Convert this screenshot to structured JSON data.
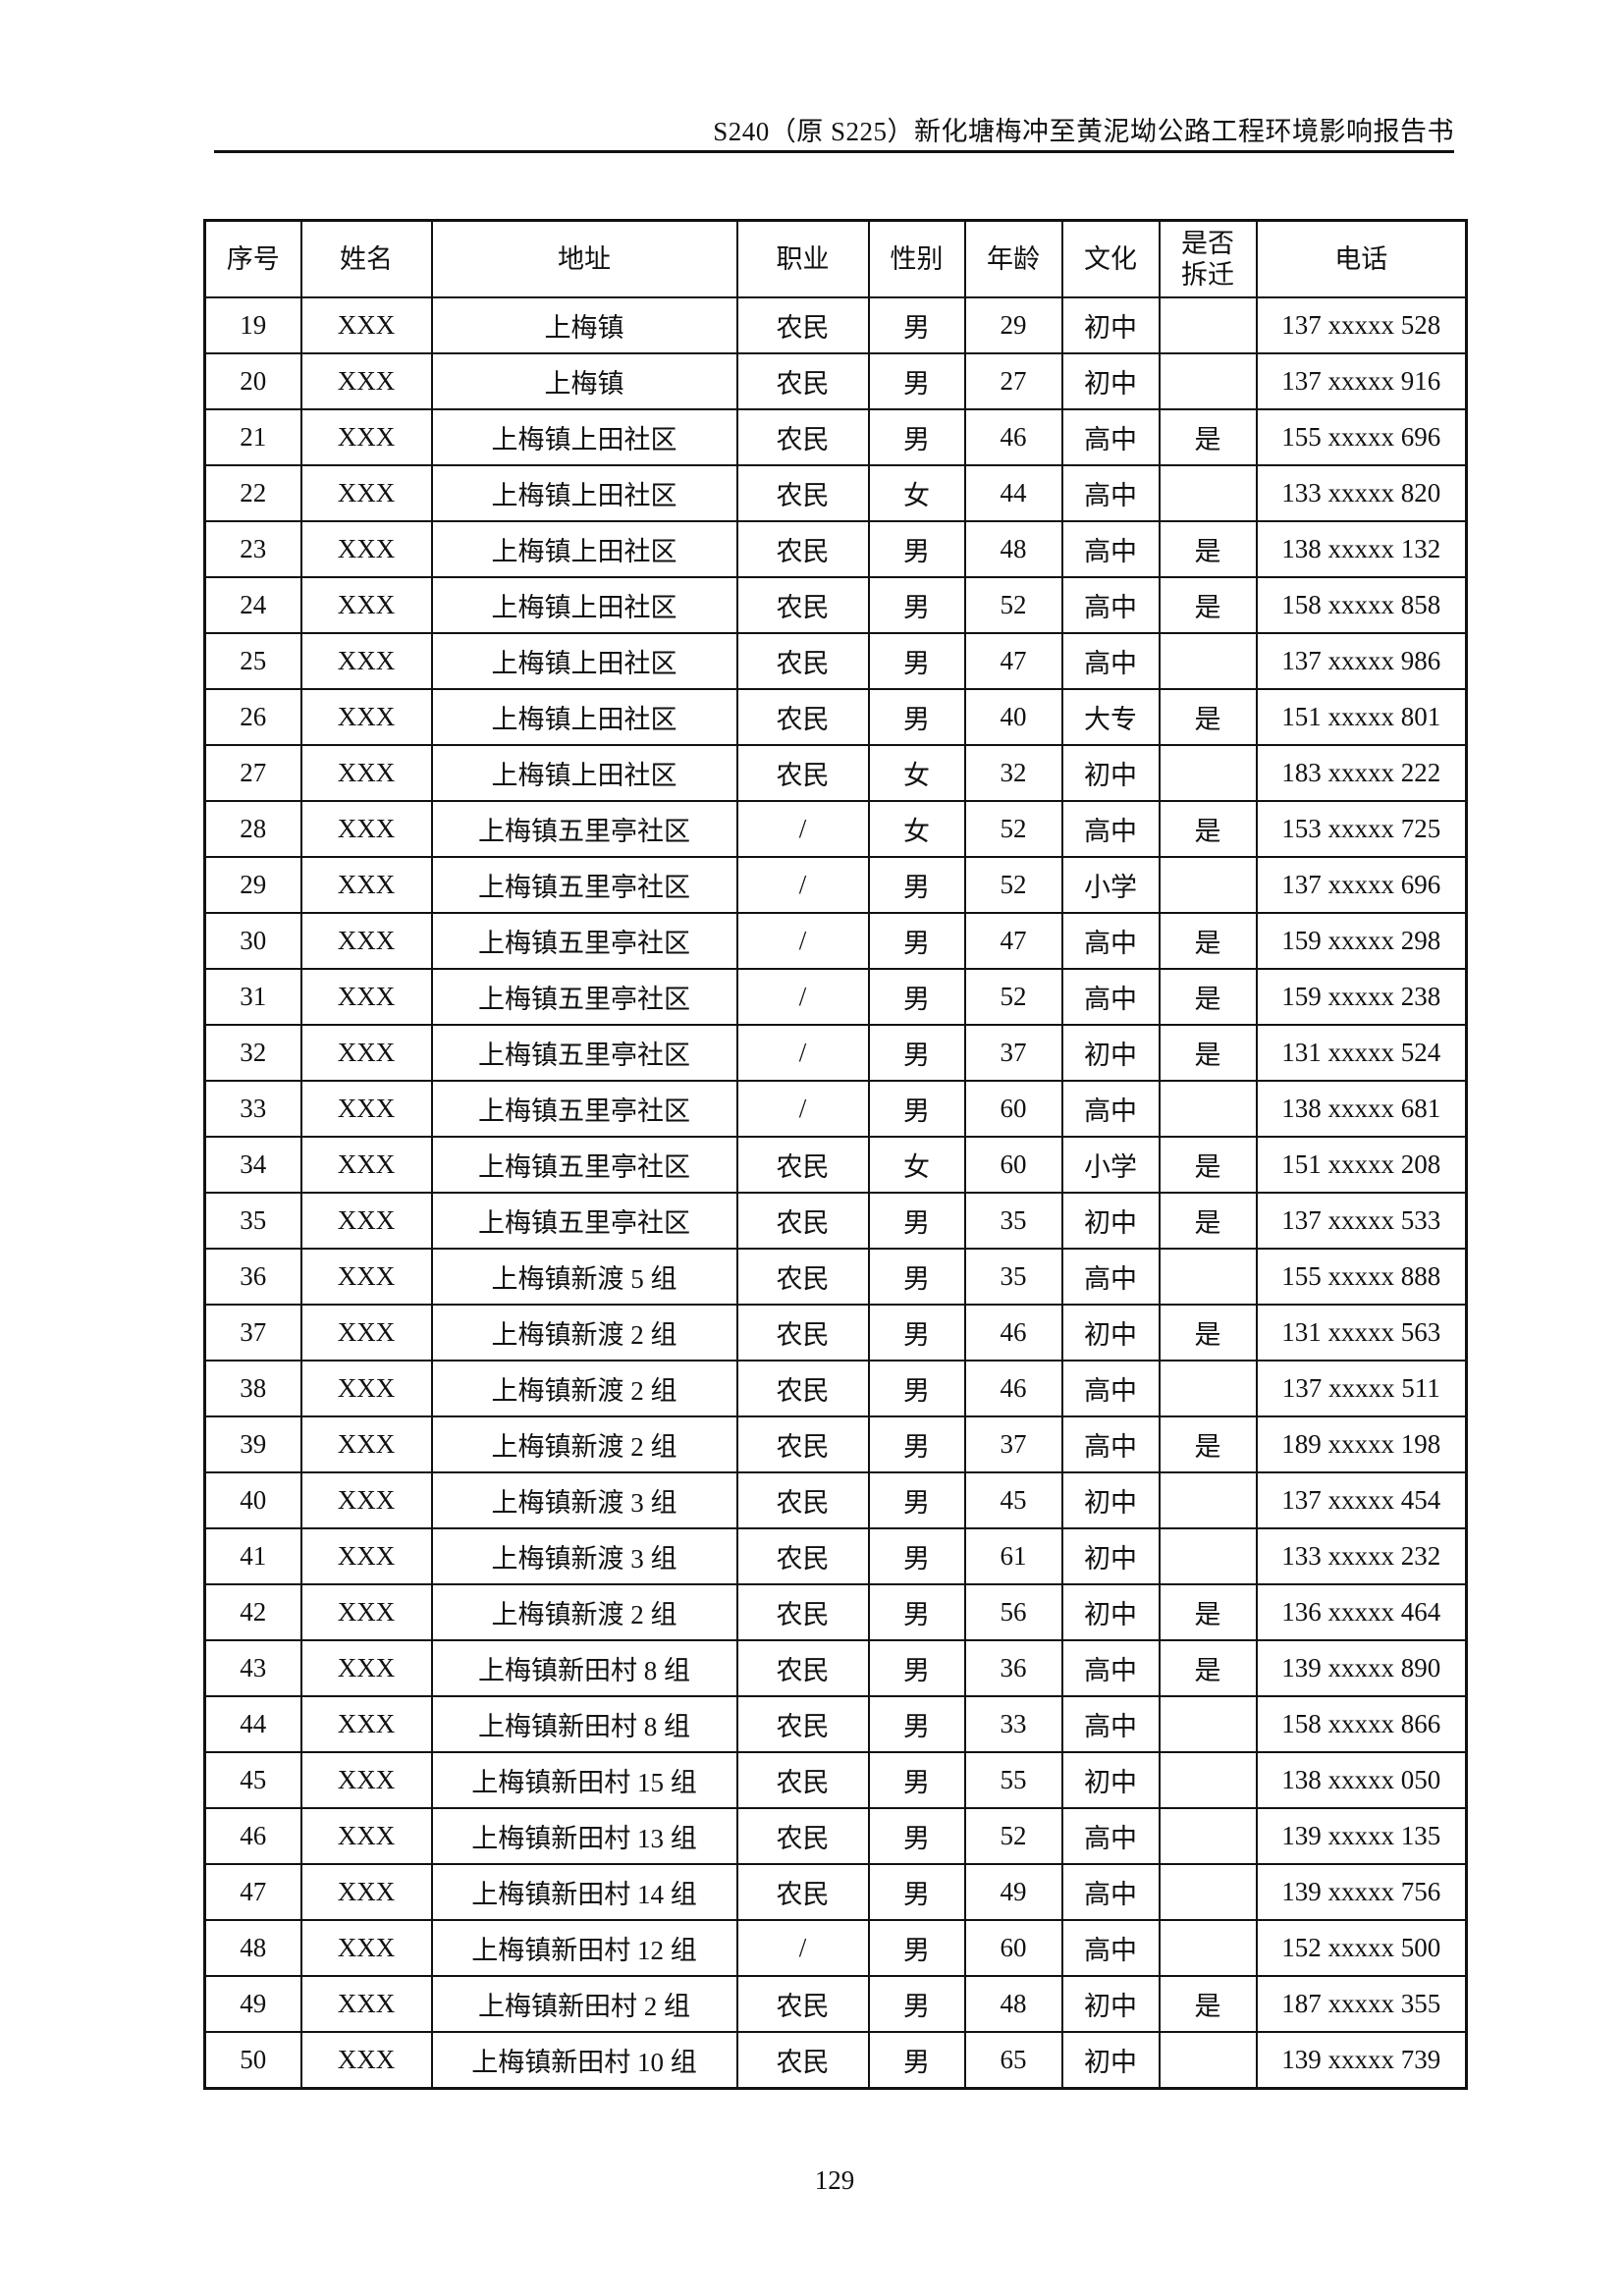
{
  "header": {
    "title": "S240（原 S225）新化塘梅冲至黄泥坳公路工程环境影响报告书"
  },
  "table": {
    "columns": [
      "序号",
      "姓名",
      "地址",
      "职业",
      "性别",
      "年龄",
      "文化",
      "是否拆迁",
      "电话"
    ],
    "rows": [
      [
        "19",
        "XXX",
        "上梅镇",
        "农民",
        "男",
        "29",
        "初中",
        "",
        "137 xxxxx 528"
      ],
      [
        "20",
        "XXX",
        "上梅镇",
        "农民",
        "男",
        "27",
        "初中",
        "",
        "137 xxxxx 916"
      ],
      [
        "21",
        "XXX",
        "上梅镇上田社区",
        "农民",
        "男",
        "46",
        "高中",
        "是",
        "155 xxxxx 696"
      ],
      [
        "22",
        "XXX",
        "上梅镇上田社区",
        "农民",
        "女",
        "44",
        "高中",
        "",
        "133 xxxxx 820"
      ],
      [
        "23",
        "XXX",
        "上梅镇上田社区",
        "农民",
        "男",
        "48",
        "高中",
        "是",
        "138 xxxxx 132"
      ],
      [
        "24",
        "XXX",
        "上梅镇上田社区",
        "农民",
        "男",
        "52",
        "高中",
        "是",
        "158 xxxxx 858"
      ],
      [
        "25",
        "XXX",
        "上梅镇上田社区",
        "农民",
        "男",
        "47",
        "高中",
        "",
        "137 xxxxx 986"
      ],
      [
        "26",
        "XXX",
        "上梅镇上田社区",
        "农民",
        "男",
        "40",
        "大专",
        "是",
        "151 xxxxx 801"
      ],
      [
        "27",
        "XXX",
        "上梅镇上田社区",
        "农民",
        "女",
        "32",
        "初中",
        "",
        "183 xxxxx 222"
      ],
      [
        "28",
        "XXX",
        "上梅镇五里亭社区",
        "/",
        "女",
        "52",
        "高中",
        "是",
        "153 xxxxx 725"
      ],
      [
        "29",
        "XXX",
        "上梅镇五里亭社区",
        "/",
        "男",
        "52",
        "小学",
        "",
        "137 xxxxx 696"
      ],
      [
        "30",
        "XXX",
        "上梅镇五里亭社区",
        "/",
        "男",
        "47",
        "高中",
        "是",
        "159 xxxxx 298"
      ],
      [
        "31",
        "XXX",
        "上梅镇五里亭社区",
        "/",
        "男",
        "52",
        "高中",
        "是",
        "159 xxxxx 238"
      ],
      [
        "32",
        "XXX",
        "上梅镇五里亭社区",
        "/",
        "男",
        "37",
        "初中",
        "是",
        "131 xxxxx 524"
      ],
      [
        "33",
        "XXX",
        "上梅镇五里亭社区",
        "/",
        "男",
        "60",
        "高中",
        "",
        "138 xxxxx 681"
      ],
      [
        "34",
        "XXX",
        "上梅镇五里亭社区",
        "农民",
        "女",
        "60",
        "小学",
        "是",
        "151 xxxxx 208"
      ],
      [
        "35",
        "XXX",
        "上梅镇五里亭社区",
        "农民",
        "男",
        "35",
        "初中",
        "是",
        "137 xxxxx 533"
      ],
      [
        "36",
        "XXX",
        "上梅镇新渡 5 组",
        "农民",
        "男",
        "35",
        "高中",
        "",
        "155 xxxxx 888"
      ],
      [
        "37",
        "XXX",
        "上梅镇新渡 2 组",
        "农民",
        "男",
        "46",
        "初中",
        "是",
        "131 xxxxx 563"
      ],
      [
        "38",
        "XXX",
        "上梅镇新渡 2 组",
        "农民",
        "男",
        "46",
        "高中",
        "",
        "137 xxxxx 511"
      ],
      [
        "39",
        "XXX",
        "上梅镇新渡 2 组",
        "农民",
        "男",
        "37",
        "高中",
        "是",
        "189 xxxxx 198"
      ],
      [
        "40",
        "XXX",
        "上梅镇新渡 3 组",
        "农民",
        "男",
        "45",
        "初中",
        "",
        "137 xxxxx 454"
      ],
      [
        "41",
        "XXX",
        "上梅镇新渡 3 组",
        "农民",
        "男",
        "61",
        "初中",
        "",
        "133 xxxxx 232"
      ],
      [
        "42",
        "XXX",
        "上梅镇新渡 2 组",
        "农民",
        "男",
        "56",
        "初中",
        "是",
        "136 xxxxx 464"
      ],
      [
        "43",
        "XXX",
        "上梅镇新田村 8 组",
        "农民",
        "男",
        "36",
        "高中",
        "是",
        "139 xxxxx 890"
      ],
      [
        "44",
        "XXX",
        "上梅镇新田村 8 组",
        "农民",
        "男",
        "33",
        "高中",
        "",
        "158 xxxxx 866"
      ],
      [
        "45",
        "XXX",
        "上梅镇新田村 15 组",
        "农民",
        "男",
        "55",
        "初中",
        "",
        "138 xxxxx 050"
      ],
      [
        "46",
        "XXX",
        "上梅镇新田村 13 组",
        "农民",
        "男",
        "52",
        "高中",
        "",
        "139 xxxxx 135"
      ],
      [
        "47",
        "XXX",
        "上梅镇新田村 14 组",
        "农民",
        "男",
        "49",
        "高中",
        "",
        "139 xxxxx 756"
      ],
      [
        "48",
        "XXX",
        "上梅镇新田村 12 组",
        "/",
        "男",
        "60",
        "高中",
        "",
        "152 xxxxx 500"
      ],
      [
        "49",
        "XXX",
        "上梅镇新田村 2 组",
        "农民",
        "男",
        "48",
        "初中",
        "是",
        "187 xxxxx 355"
      ],
      [
        "50",
        "XXX",
        "上梅镇新田村 10 组",
        "农民",
        "男",
        "65",
        "初中",
        "",
        "139 xxxxx 739"
      ]
    ]
  },
  "footer": {
    "page_number": "129"
  }
}
